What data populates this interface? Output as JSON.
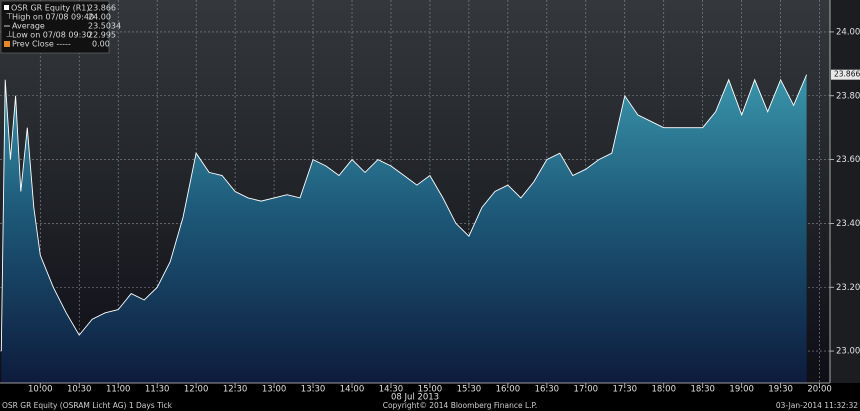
{
  "chart_data": {
    "type": "area",
    "series": [
      {
        "name": "OSR GR Equity (R1)",
        "color": "#ffffff",
        "values": [
          23.0,
          23.85,
          23.6,
          23.8,
          23.5,
          23.7,
          23.45,
          23.3,
          23.2,
          23.12,
          23.05,
          23.1,
          23.12,
          23.13,
          23.18,
          23.16,
          23.2,
          23.28,
          23.42,
          23.62,
          23.56,
          23.55,
          23.5,
          23.48,
          23.47,
          23.48,
          23.49,
          23.48,
          23.6,
          23.58,
          23.55,
          23.6,
          23.56,
          23.6,
          23.58,
          23.55,
          23.52,
          23.55,
          23.48,
          23.4,
          23.36,
          23.45,
          23.5,
          23.52,
          23.48,
          23.53,
          23.6,
          23.62,
          23.55,
          23.57,
          23.6,
          23.62,
          23.8,
          23.74,
          23.72,
          23.7,
          23.7,
          23.7,
          23.7,
          23.75,
          23.85,
          23.74,
          23.85,
          23.75,
          23.85,
          23.77,
          23.866
        ]
      }
    ],
    "x": [
      570,
      573,
      577,
      581,
      585,
      590,
      595,
      600,
      610,
      620,
      630,
      640,
      650,
      660,
      670,
      680,
      690,
      700,
      710,
      720,
      730,
      740,
      750,
      760,
      770,
      780,
      790,
      800,
      810,
      820,
      830,
      840,
      850,
      860,
      870,
      880,
      890,
      900,
      910,
      920,
      930,
      940,
      950,
      960,
      970,
      980,
      990,
      1000,
      1010,
      1020,
      1030,
      1040,
      1050,
      1060,
      1070,
      1080,
      1090,
      1100,
      1110,
      1120,
      1130,
      1140,
      1150,
      1160,
      1170,
      1180,
      1190
    ],
    "xlim": [
      569,
      1208
    ],
    "xticks": [
      {
        "value": 600,
        "label": "10:00"
      },
      {
        "value": 630,
        "label": "10:30"
      },
      {
        "value": 660,
        "label": "11:00"
      },
      {
        "value": 690,
        "label": "11:30"
      },
      {
        "value": 720,
        "label": "12:00"
      },
      {
        "value": 750,
        "label": "12:30"
      },
      {
        "value": 780,
        "label": "13:00"
      },
      {
        "value": 810,
        "label": "13:30"
      },
      {
        "value": 840,
        "label": "14:00"
      },
      {
        "value": 870,
        "label": "14:30"
      },
      {
        "value": 900,
        "label": "15:00"
      },
      {
        "value": 930,
        "label": "15:30"
      },
      {
        "value": 960,
        "label": "16:00"
      },
      {
        "value": 990,
        "label": "16:30"
      },
      {
        "value": 1020,
        "label": "17:00"
      },
      {
        "value": 1050,
        "label": "17:30"
      },
      {
        "value": 1080,
        "label": "18:00"
      },
      {
        "value": 1110,
        "label": "18:30"
      },
      {
        "value": 1140,
        "label": "19:00"
      },
      {
        "value": 1170,
        "label": "19:30"
      },
      {
        "value": 1200,
        "label": "20:00"
      }
    ],
    "ylim": [
      22.9,
      24.1
    ],
    "yticks": [
      {
        "value": 23.0,
        "label": "23.00"
      },
      {
        "value": 23.2,
        "label": "23.20"
      },
      {
        "value": 23.4,
        "label": "23.40"
      },
      {
        "value": 23.6,
        "label": "23.60"
      },
      {
        "value": 23.8,
        "label": "23.80"
      },
      {
        "value": 24.0,
        "label": "24.00"
      }
    ],
    "grid": true,
    "date_label": "08 Jul 2013",
    "legend_stats": [
      {
        "label": "High on 07/08 09:40",
        "value": "24.00"
      },
      {
        "label": "Average",
        "value": "23.5034"
      },
      {
        "label": "Low on 07/08 09:30",
        "value": "22.995"
      },
      {
        "label": "Prev Close -----",
        "value": "0.00"
      }
    ],
    "legend_value": "23.866",
    "footer": {
      "left": "OSR GR Equity (OSRAM Licht AG) 1 Days  Tick",
      "center": "Copyright© 2014 Bloomberg Finance L.P.",
      "right": "03-Jan-2014 11:32:32"
    }
  }
}
